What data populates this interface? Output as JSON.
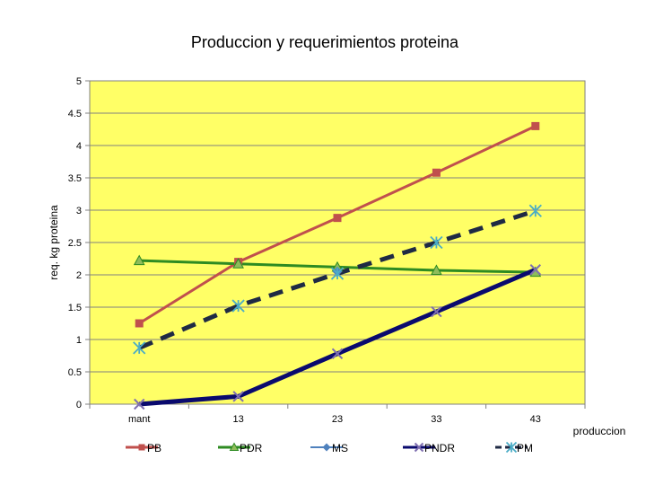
{
  "chart_data": {
    "type": "line",
    "title": "Produccion y requerimientos proteina",
    "xlabel": "produccion",
    "ylabel": "req. kg proteina",
    "categories": [
      "mant",
      "13",
      "23",
      "33",
      "43"
    ],
    "ylim": [
      0,
      5
    ],
    "yticks": [
      "0",
      "0.5",
      "1",
      "1.5",
      "2",
      "2.5",
      "3",
      "3.5",
      "4",
      "4.5",
      "5"
    ],
    "grid": true,
    "legend_position": "bottom",
    "plot_background": "#FFFF66",
    "series": [
      {
        "name": "PB",
        "values": [
          1.25,
          2.2,
          2.88,
          3.58,
          4.3
        ],
        "color": "#C0504D",
        "marker": "square",
        "style": "solid",
        "width": 3
      },
      {
        "name": "PDR",
        "values": [
          2.22,
          2.17,
          2.12,
          2.07,
          2.04
        ],
        "color": "#2E8B22",
        "marker": "triangle",
        "style": "solid",
        "width": 3
      },
      {
        "name": "MS",
        "values": [
          null,
          null,
          2.05,
          null,
          null
        ],
        "color": "#4F81BD",
        "marker": "diamond",
        "style": "solid",
        "width": 2
      },
      {
        "name": "PNDR",
        "values": [
          0.0,
          0.12,
          0.78,
          1.43,
          2.08
        ],
        "color": "#0A0A6E",
        "marker": "x",
        "style": "solid",
        "width": 5
      },
      {
        "name": "PM",
        "values": [
          0.87,
          1.52,
          2.02,
          2.5,
          2.99
        ],
        "color": "#1F2A44",
        "marker": "star",
        "style": "dashed",
        "width": 5
      }
    ]
  }
}
